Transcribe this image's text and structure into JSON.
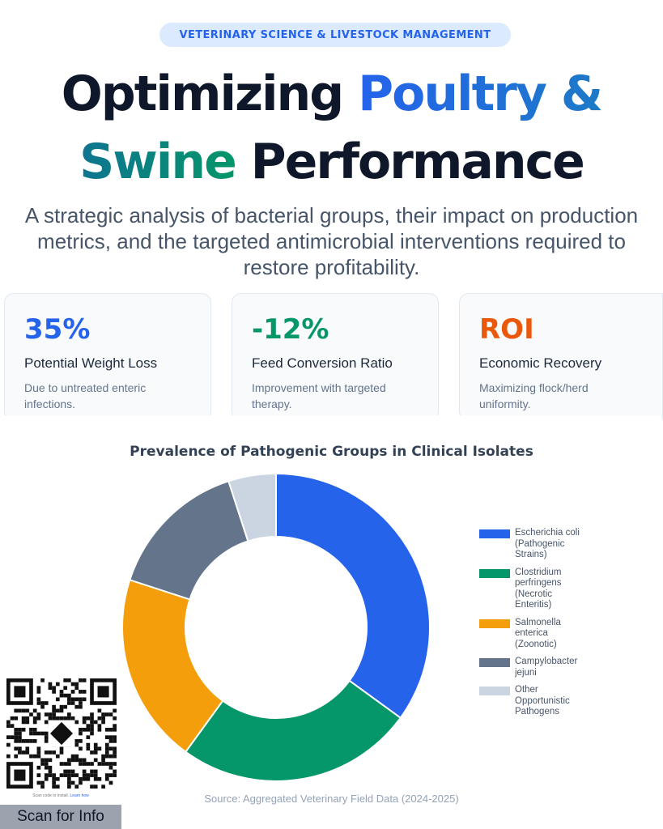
{
  "header": {
    "badge": "VETERINARY SCIENCE & LIVESTOCK MANAGEMENT",
    "title_part1": "Optimizing",
    "title_part2": "Poultry &",
    "title_part3": "Swine",
    "title_part4": "Performance",
    "subtitle_lines": [
      "A strategic analysis of bacterial groups, their impact on production",
      "metrics, and the targeted antimicrobial interventions required to",
      "restore profitability."
    ]
  },
  "stats": [
    {
      "value": "35%",
      "label": "Potential Weight Loss",
      "desc_lines": [
        "Due to untreated enteric",
        "infections."
      ],
      "color": "#2563eb"
    },
    {
      "value": "-12%",
      "label": "Feed Conversion Ratio",
      "desc_lines": [
        "Improvement with targeted",
        "therapy."
      ],
      "color": "#059669"
    },
    {
      "value": "ROI",
      "label": "Economic Recovery",
      "desc_lines": [
        "Maximizing flock/herd",
        "uniformity."
      ],
      "color": "#ea580c"
    }
  ],
  "chart_data": {
    "type": "pie",
    "title": "Prevalence of Pathogenic Groups in Clinical Isolates",
    "series": [
      {
        "name": "Escherichia coli (Pathogenic Strains)",
        "legend_lines": [
          "Escherichia coli",
          "(Pathogenic",
          "Strains)"
        ],
        "value": 35,
        "color": "#2563eb"
      },
      {
        "name": "Clostridium perfringens (Necrotic Enteritis)",
        "legend_lines": [
          "Clostridium",
          "perfringens",
          "(Necrotic",
          "Enteritis)"
        ],
        "value": 25,
        "color": "#059669"
      },
      {
        "name": "Salmonella enterica (Zoonotic)",
        "legend_lines": [
          "Salmonella",
          "enterica",
          "(Zoonotic)"
        ],
        "value": 20,
        "color": "#f59e0b"
      },
      {
        "name": "Campylobacter jejuni",
        "legend_lines": [
          "Campylobacter",
          "jejuni"
        ],
        "value": 15,
        "color": "#64748b"
      },
      {
        "name": "Other Opportunistic Pathogens",
        "legend_lines": [
          "Other",
          "Opportunistic",
          "Pathogens"
        ],
        "value": 5,
        "color": "#cbd5e1"
      }
    ],
    "legend_position": "right",
    "source": "Source: Aggregated Veterinary Field Data (2024-2025)"
  },
  "qr": {
    "hint": "Scan code to install.",
    "hint_link": "Learn how",
    "label": "Scan for Info"
  }
}
